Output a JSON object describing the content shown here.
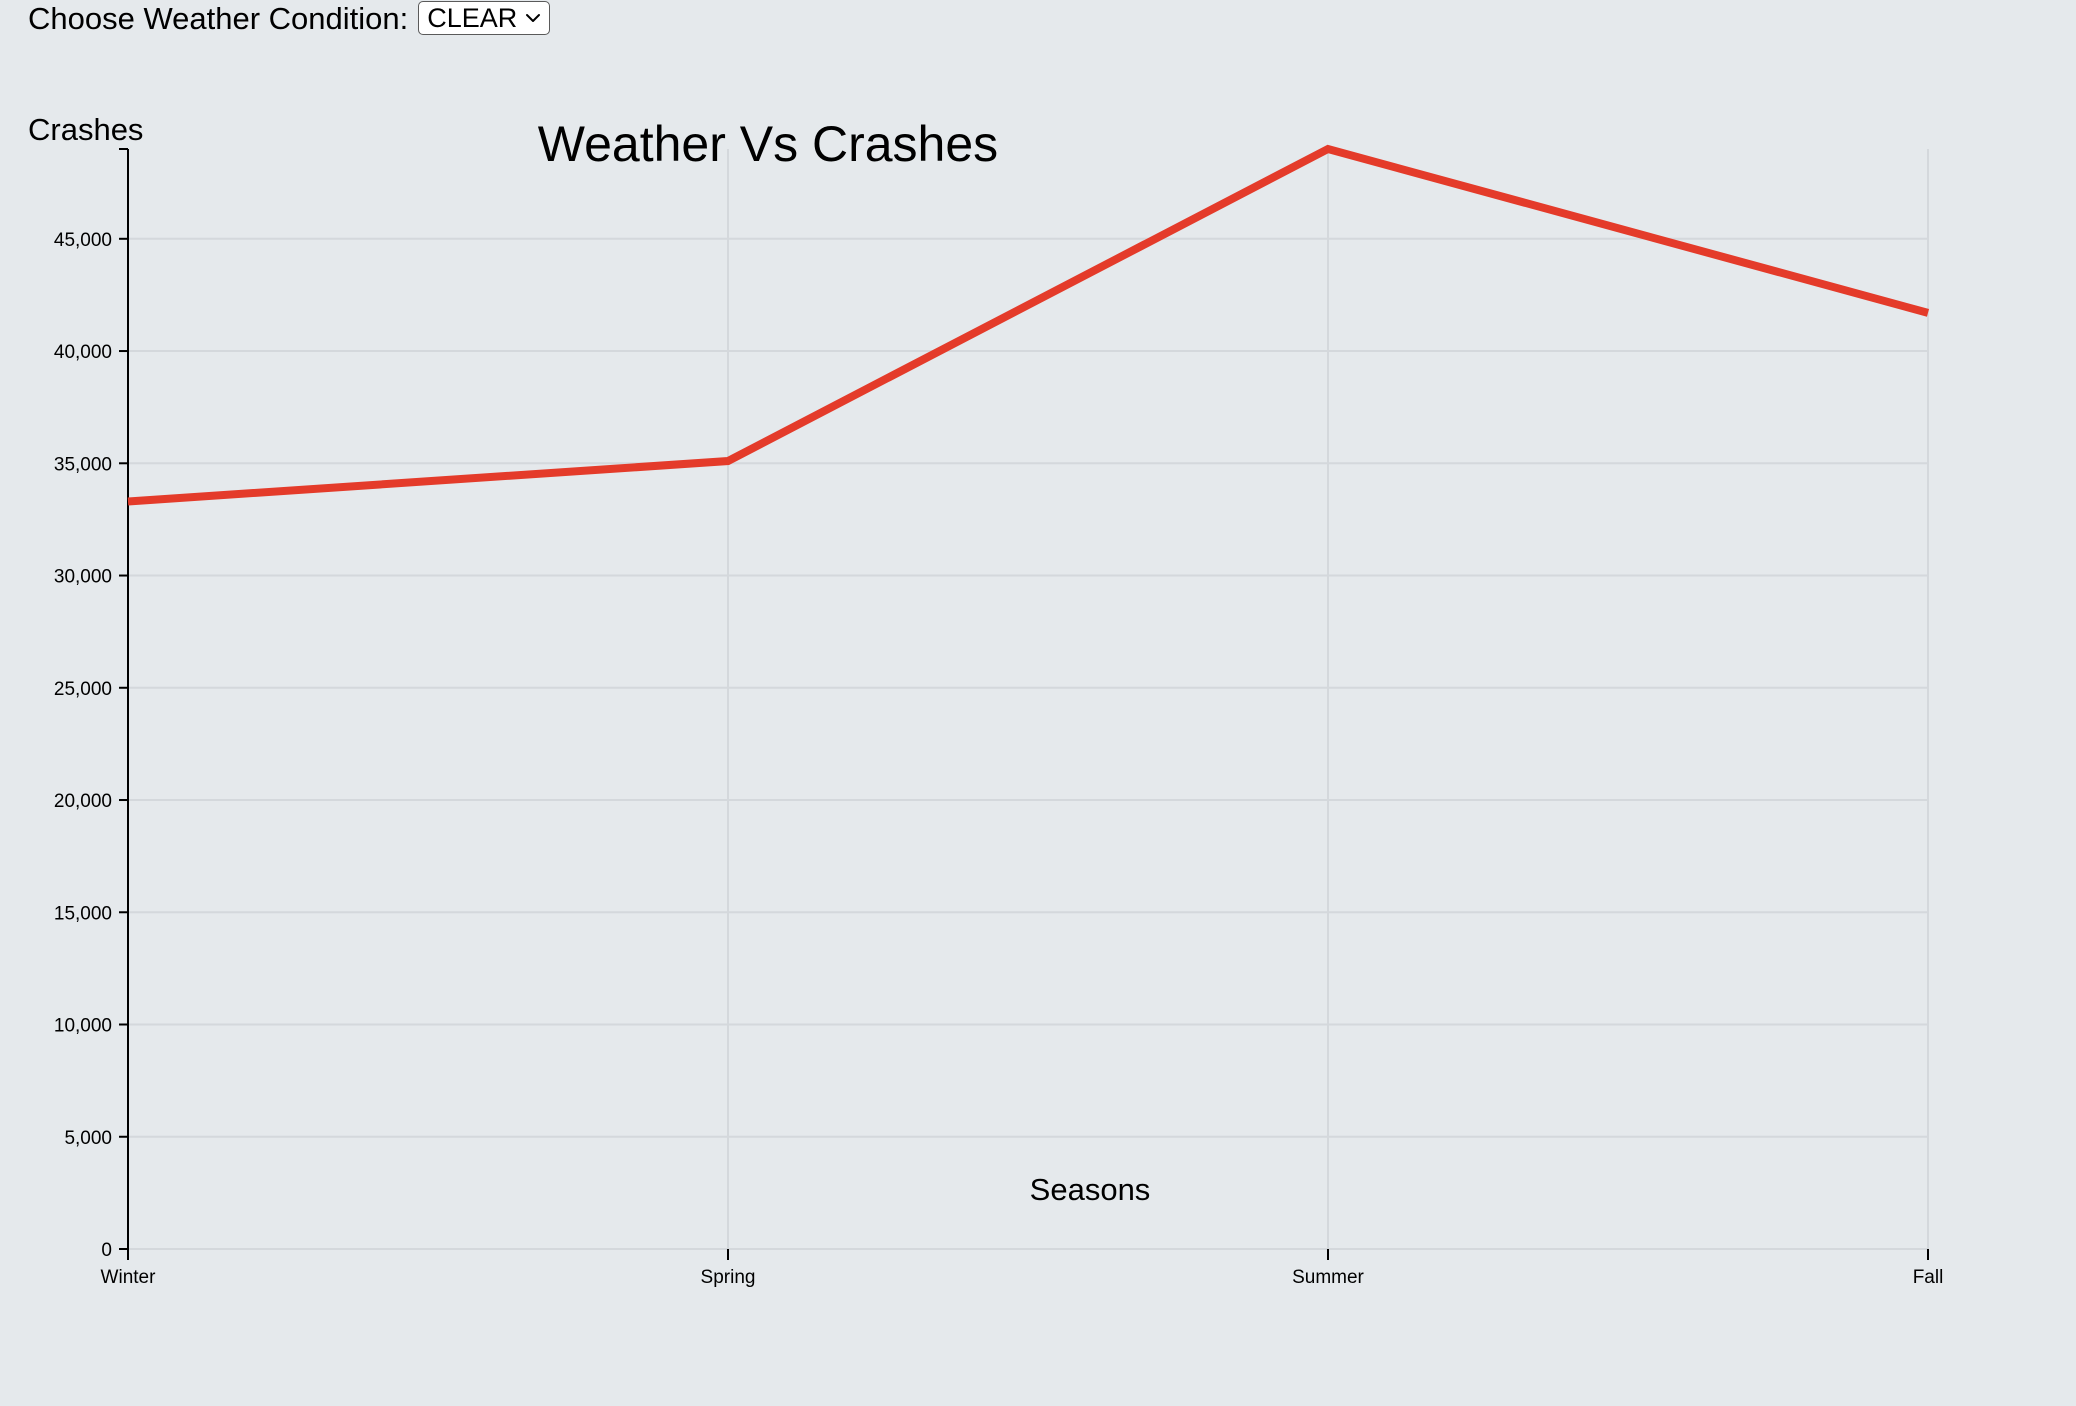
{
  "controls": {
    "weather_label": "Choose Weather Condition:",
    "weather_selected": "CLEAR"
  },
  "chart_data": {
    "type": "line",
    "title": "Weather Vs Crashes",
    "xlabel": "Seasons",
    "ylabel": "Crashes",
    "categories": [
      "Winter",
      "Spring",
      "Summer",
      "Fall"
    ],
    "series": [
      {
        "values": [
          33300,
          35100,
          49000,
          41700
        ]
      }
    ],
    "ylim": [
      0,
      49000
    ],
    "yticks": [
      0,
      5000,
      10000,
      15000,
      20000,
      25000,
      30000,
      35000,
      40000,
      45000
    ],
    "ytick_labels": [
      "0",
      "5,000",
      "10,000",
      "15,000",
      "20,000",
      "25,000",
      "30,000",
      "35,000",
      "40,000",
      "45,000"
    ],
    "grid": true,
    "line_color": "#e43b2a",
    "grid_color": "#d4d8dc"
  }
}
